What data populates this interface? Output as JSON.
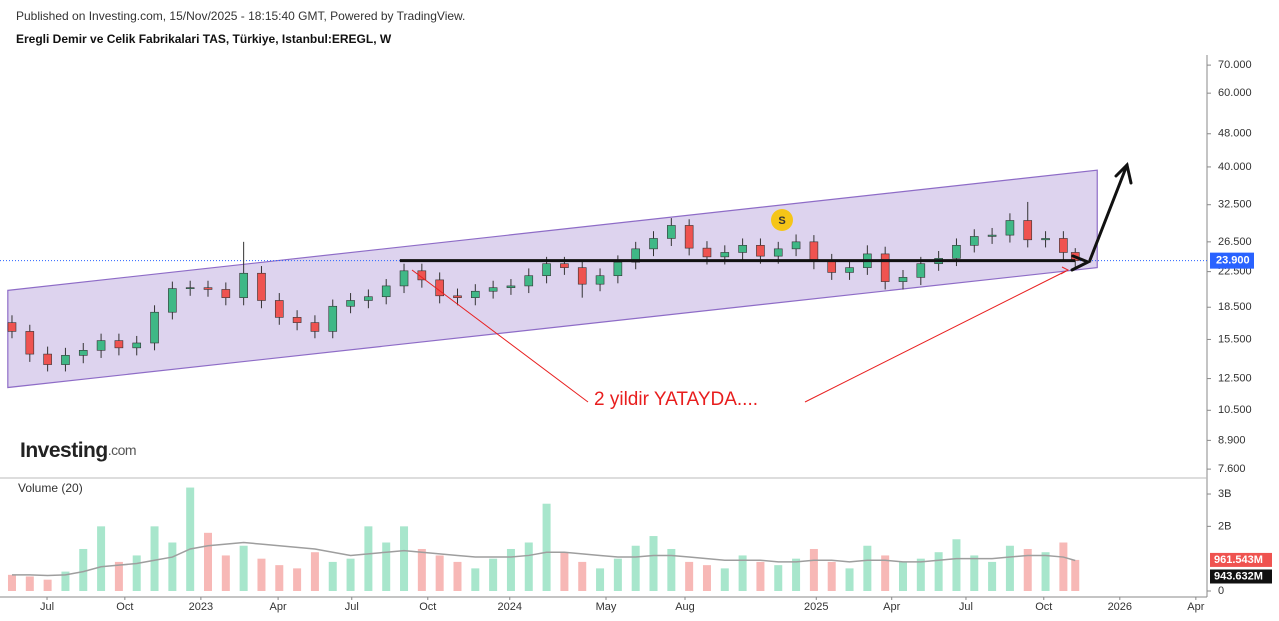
{
  "header": {
    "published": "Published on Investing.com, 15/Nov/2025 - 18:15:40 GMT, Powered by TradingView.",
    "title": "Eregli Demir ve Celik Fabrikalari TAS, Türkiye, Istanbul:EREGL, W",
    "logo": "Investing",
    "logo_suffix": ".com"
  },
  "chart_data": [
    {
      "type": "candlestick",
      "log_scale": true,
      "up_color": "#3fb886",
      "down_color": "#ef5350",
      "x": [
        0,
        3,
        6,
        9,
        12,
        15,
        18,
        21,
        24,
        27,
        30,
        33,
        36,
        39,
        42,
        45,
        48,
        51,
        54,
        57,
        60,
        63,
        66,
        69,
        72,
        75,
        78,
        81,
        84,
        87,
        90,
        93,
        96,
        99,
        102,
        105,
        108,
        111,
        114,
        117,
        120,
        123,
        126,
        129,
        132,
        135,
        138,
        141,
        144,
        147,
        150,
        153,
        156,
        159,
        162,
        165,
        168,
        171,
        174,
        177,
        179
      ],
      "open": [
        17.0,
        16.2,
        14.3,
        13.5,
        14.2,
        14.6,
        15.4,
        14.8,
        15.2,
        18.0,
        20.5,
        20.6,
        20.4,
        19.5,
        22.3,
        19.2,
        17.5,
        17.0,
        16.2,
        18.6,
        19.2,
        19.6,
        20.8,
        22.6,
        21.5,
        19.7,
        19.5,
        20.2,
        20.6,
        20.8,
        22.0,
        23.5,
        23.0,
        21.0,
        22.0,
        23.7,
        25.5,
        27.0,
        29.0,
        25.6,
        24.4,
        25.0,
        26.0,
        24.5,
        25.5,
        26.5,
        23.8,
        22.4,
        23.0,
        24.8,
        21.3,
        21.8,
        23.5,
        24.2,
        26.0,
        27.3,
        27.5,
        29.8,
        26.8,
        27.0,
        25.0
      ],
      "high": [
        17.7,
        16.8,
        14.9,
        14.8,
        15.2,
        16.0,
        16.0,
        15.8,
        18.7,
        21.3,
        21.4,
        21.4,
        21.2,
        26.5,
        23.2,
        20.0,
        18.2,
        17.7,
        19.3,
        20.0,
        20.4,
        21.6,
        23.5,
        23.5,
        22.4,
        20.5,
        21.0,
        21.4,
        21.6,
        22.9,
        24.4,
        24.4,
        23.9,
        22.9,
        24.6,
        26.5,
        28.1,
        30.2,
        30.0,
        26.6,
        26.0,
        27.0,
        27.0,
        26.5,
        27.6,
        27.5,
        24.8,
        23.9,
        26.0,
        25.8,
        22.7,
        24.4,
        25.2,
        27.0,
        28.4,
        28.6,
        31.0,
        33.0,
        28.1,
        28.1,
        25.6
      ],
      "low": [
        15.6,
        13.7,
        13.0,
        13.0,
        13.6,
        14.0,
        14.2,
        14.2,
        14.6,
        17.3,
        19.7,
        19.6,
        18.7,
        18.7,
        18.4,
        16.8,
        16.3,
        15.6,
        15.6,
        17.9,
        18.4,
        18.8,
        20.0,
        20.6,
        18.9,
        18.7,
        18.7,
        19.4,
        19.8,
        20.0,
        21.1,
        22.1,
        19.5,
        20.2,
        21.1,
        22.8,
        24.5,
        25.9,
        24.6,
        23.4,
        23.4,
        24.0,
        23.5,
        23.5,
        24.5,
        22.8,
        21.5,
        21.5,
        22.1,
        20.4,
        20.4,
        20.9,
        22.6,
        23.2,
        25.0,
        26.2,
        26.4,
        25.7,
        25.7,
        24.0,
        23.0
      ],
      "close": [
        16.2,
        14.3,
        13.5,
        14.2,
        14.6,
        15.4,
        14.8,
        15.2,
        18.0,
        20.5,
        20.6,
        20.4,
        19.5,
        22.3,
        19.2,
        17.5,
        17.0,
        16.2,
        18.6,
        19.2,
        19.6,
        20.8,
        22.6,
        21.5,
        19.7,
        19.5,
        20.2,
        20.6,
        20.8,
        22.0,
        23.5,
        23.0,
        21.0,
        22.0,
        23.7,
        25.5,
        27.0,
        29.0,
        25.6,
        24.4,
        25.0,
        26.0,
        24.5,
        25.5,
        26.5,
        23.8,
        22.4,
        23.0,
        24.8,
        21.3,
        21.8,
        23.5,
        24.2,
        26.0,
        27.3,
        27.5,
        29.8,
        26.8,
        27.0,
        25.0,
        23.9
      ],
      "xlim": [
        -0.67,
        200
      ],
      "ylim": [
        7.48,
        74
      ],
      "yticks": [
        {
          "value": 70,
          "label": "70.000"
        },
        {
          "value": 60,
          "label": "60.000"
        },
        {
          "value": 48,
          "label": "48.000"
        },
        {
          "value": 40,
          "label": "40.000"
        },
        {
          "value": 32.5,
          "label": "32.500"
        },
        {
          "value": 26.5,
          "label": "26.500"
        },
        {
          "value": 22.5,
          "label": "22.500"
        },
        {
          "value": 18.5,
          "label": "18.500"
        },
        {
          "value": 15.5,
          "label": "15.500"
        },
        {
          "value": 12.5,
          "label": "12.500"
        },
        {
          "value": 10.5,
          "label": "10.500"
        },
        {
          "value": 8.9,
          "label": "8.900"
        },
        {
          "value": 7.6,
          "label": "7.600"
        }
      ],
      "price_line": {
        "value": 23.9,
        "label": "23.900",
        "color": "#2962ff"
      },
      "channel": {
        "x": [
          -0.7,
          182.7
        ],
        "upper": [
          20.3,
          39.3
        ],
        "lower": [
          11.9,
          23.0
        ],
        "color": "#8e6cc7"
      },
      "level": {
        "value": 23.9,
        "x": [
          65.3,
          179
        ]
      },
      "annotation": "2 yildir YATAYDA....",
      "marker": "S"
    },
    {
      "type": "bar",
      "title": "Volume (20)",
      "up_color": "#a8e6cc",
      "down_color": "#f7b8b6",
      "ma_color": "#9e9e9e",
      "values": [
        500000000,
        450000000,
        350000000,
        600000000,
        1300000000,
        2000000000,
        900000000,
        1100000000,
        2000000000,
        1500000000,
        3200000000,
        1800000000,
        1100000000,
        1400000000,
        1000000000,
        800000000,
        700000000,
        1200000000,
        900000000,
        1000000000,
        2000000000,
        1500000000,
        2000000000,
        1300000000,
        1100000000,
        900000000,
        700000000,
        1000000000,
        1300000000,
        1500000000,
        2700000000,
        1200000000,
        900000000,
        700000000,
        1000000000,
        1400000000,
        1700000000,
        1300000000,
        900000000,
        800000000,
        700000000,
        1100000000,
        900000000,
        800000000,
        1000000000,
        1300000000,
        900000000,
        700000000,
        1400000000,
        1100000000,
        900000000,
        1000000000,
        1200000000,
        1600000000,
        1100000000,
        900000000,
        1400000000,
        1300000000,
        1200000000,
        1500000000,
        961543000
      ],
      "value_labels": [
        null,
        null,
        null,
        null,
        null,
        null,
        null,
        null,
        null,
        null,
        null,
        null,
        null,
        null,
        null,
        null,
        null,
        null,
        null,
        null,
        null,
        null,
        null,
        null,
        null,
        null,
        null,
        null,
        null,
        null,
        null,
        null,
        null,
        null,
        null,
        null,
        null,
        null,
        null,
        null,
        null,
        null,
        null,
        null,
        null,
        null,
        null,
        null,
        null,
        null,
        null,
        null,
        null,
        null,
        null,
        null,
        null,
        null,
        null,
        null,
        "961.543M"
      ],
      "ma_values": [
        500000000,
        500000000,
        480000000,
        500000000,
        600000000,
        750000000,
        800000000,
        850000000,
        950000000,
        1050000000,
        1300000000,
        1400000000,
        1450000000,
        1500000000,
        1450000000,
        1400000000,
        1350000000,
        1300000000,
        1200000000,
        1100000000,
        1150000000,
        1200000000,
        1250000000,
        1200000000,
        1150000000,
        1100000000,
        1050000000,
        1050000000,
        1050000000,
        1100000000,
        1200000000,
        1200000000,
        1150000000,
        1100000000,
        1050000000,
        1050000000,
        1100000000,
        1100000000,
        1050000000,
        1000000000,
        950000000,
        950000000,
        950000000,
        900000000,
        900000000,
        950000000,
        950000000,
        900000000,
        950000000,
        950000000,
        900000000,
        900000000,
        950000000,
        1000000000,
        1000000000,
        1000000000,
        1050000000,
        1100000000,
        1100000000,
        1050000000,
        943632000
      ],
      "ma_value_labels": [
        null,
        null,
        null,
        null,
        null,
        null,
        null,
        null,
        null,
        null,
        null,
        null,
        null,
        null,
        null,
        null,
        null,
        null,
        null,
        null,
        null,
        null,
        null,
        null,
        null,
        null,
        null,
        null,
        null,
        null,
        null,
        null,
        null,
        null,
        null,
        null,
        null,
        null,
        null,
        null,
        null,
        null,
        null,
        null,
        null,
        null,
        null,
        null,
        null,
        null,
        null,
        null,
        null,
        null,
        null,
        null,
        null,
        null,
        null,
        null,
        "943.632M"
      ],
      "xlim": [
        -0.67,
        200
      ],
      "ylim": [
        0,
        3310000000
      ],
      "yticks": [
        {
          "value": 3000000000,
          "label": "3B"
        },
        {
          "value": 2000000000,
          "label": "2B"
        },
        0
      ],
      "xticks": [
        {
          "value": 5.9,
          "label": "Jul"
        },
        {
          "value": 19,
          "label": "Oct"
        },
        {
          "value": 31.8,
          "label": "2023"
        },
        {
          "value": 44.8,
          "label": "Apr"
        },
        {
          "value": 57.2,
          "label": "Jul"
        },
        {
          "value": 70,
          "label": "Oct"
        },
        {
          "value": 83.8,
          "label": "2024"
        },
        {
          "value": 100,
          "label": "May"
        },
        {
          "value": 113.3,
          "label": "Aug"
        },
        {
          "value": 135.4,
          "label": "2025"
        },
        {
          "value": 148.1,
          "label": "Apr"
        },
        {
          "value": 160.6,
          "label": "Jul"
        },
        {
          "value": 173.7,
          "label": "Oct"
        },
        {
          "value": 186.5,
          "label": "2026"
        },
        {
          "value": 199.3,
          "label": "Apr"
        }
      ]
    }
  ]
}
